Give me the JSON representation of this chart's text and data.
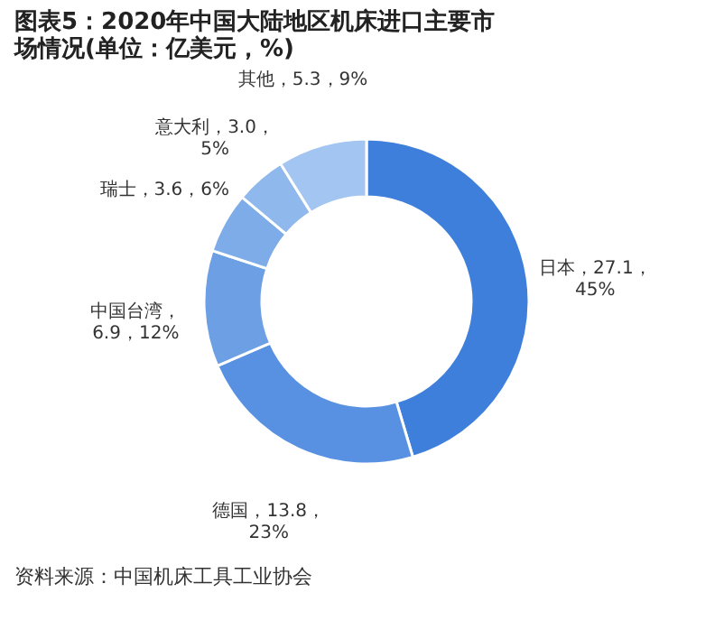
{
  "chart_data": {
    "type": "donut",
    "title": "图表5：2020年中国大陆地区机床进口主要市场情况(单位：亿美元，%)",
    "categories": [
      "日本",
      "德国",
      "中国台湾",
      "瑞士",
      "意大利",
      "其他"
    ],
    "values": [
      27.1,
      13.8,
      6.9,
      3.6,
      3.0,
      5.3
    ],
    "value_labels": [
      "，27.1，\n45%",
      "，13.8，\n23%",
      "，\n6.9，12%",
      "，3.6，6%",
      "，3.0，\n5%",
      "，5.3，9%"
    ],
    "colors": [
      "#3f7fdc",
      "#5891e1",
      "#6d9fe5",
      "#7eace9",
      "#8fb8ed",
      "#a3c5f1"
    ],
    "legend": false,
    "annotations": [
      "资料来源：中国机床工具工业协会"
    ]
  }
}
